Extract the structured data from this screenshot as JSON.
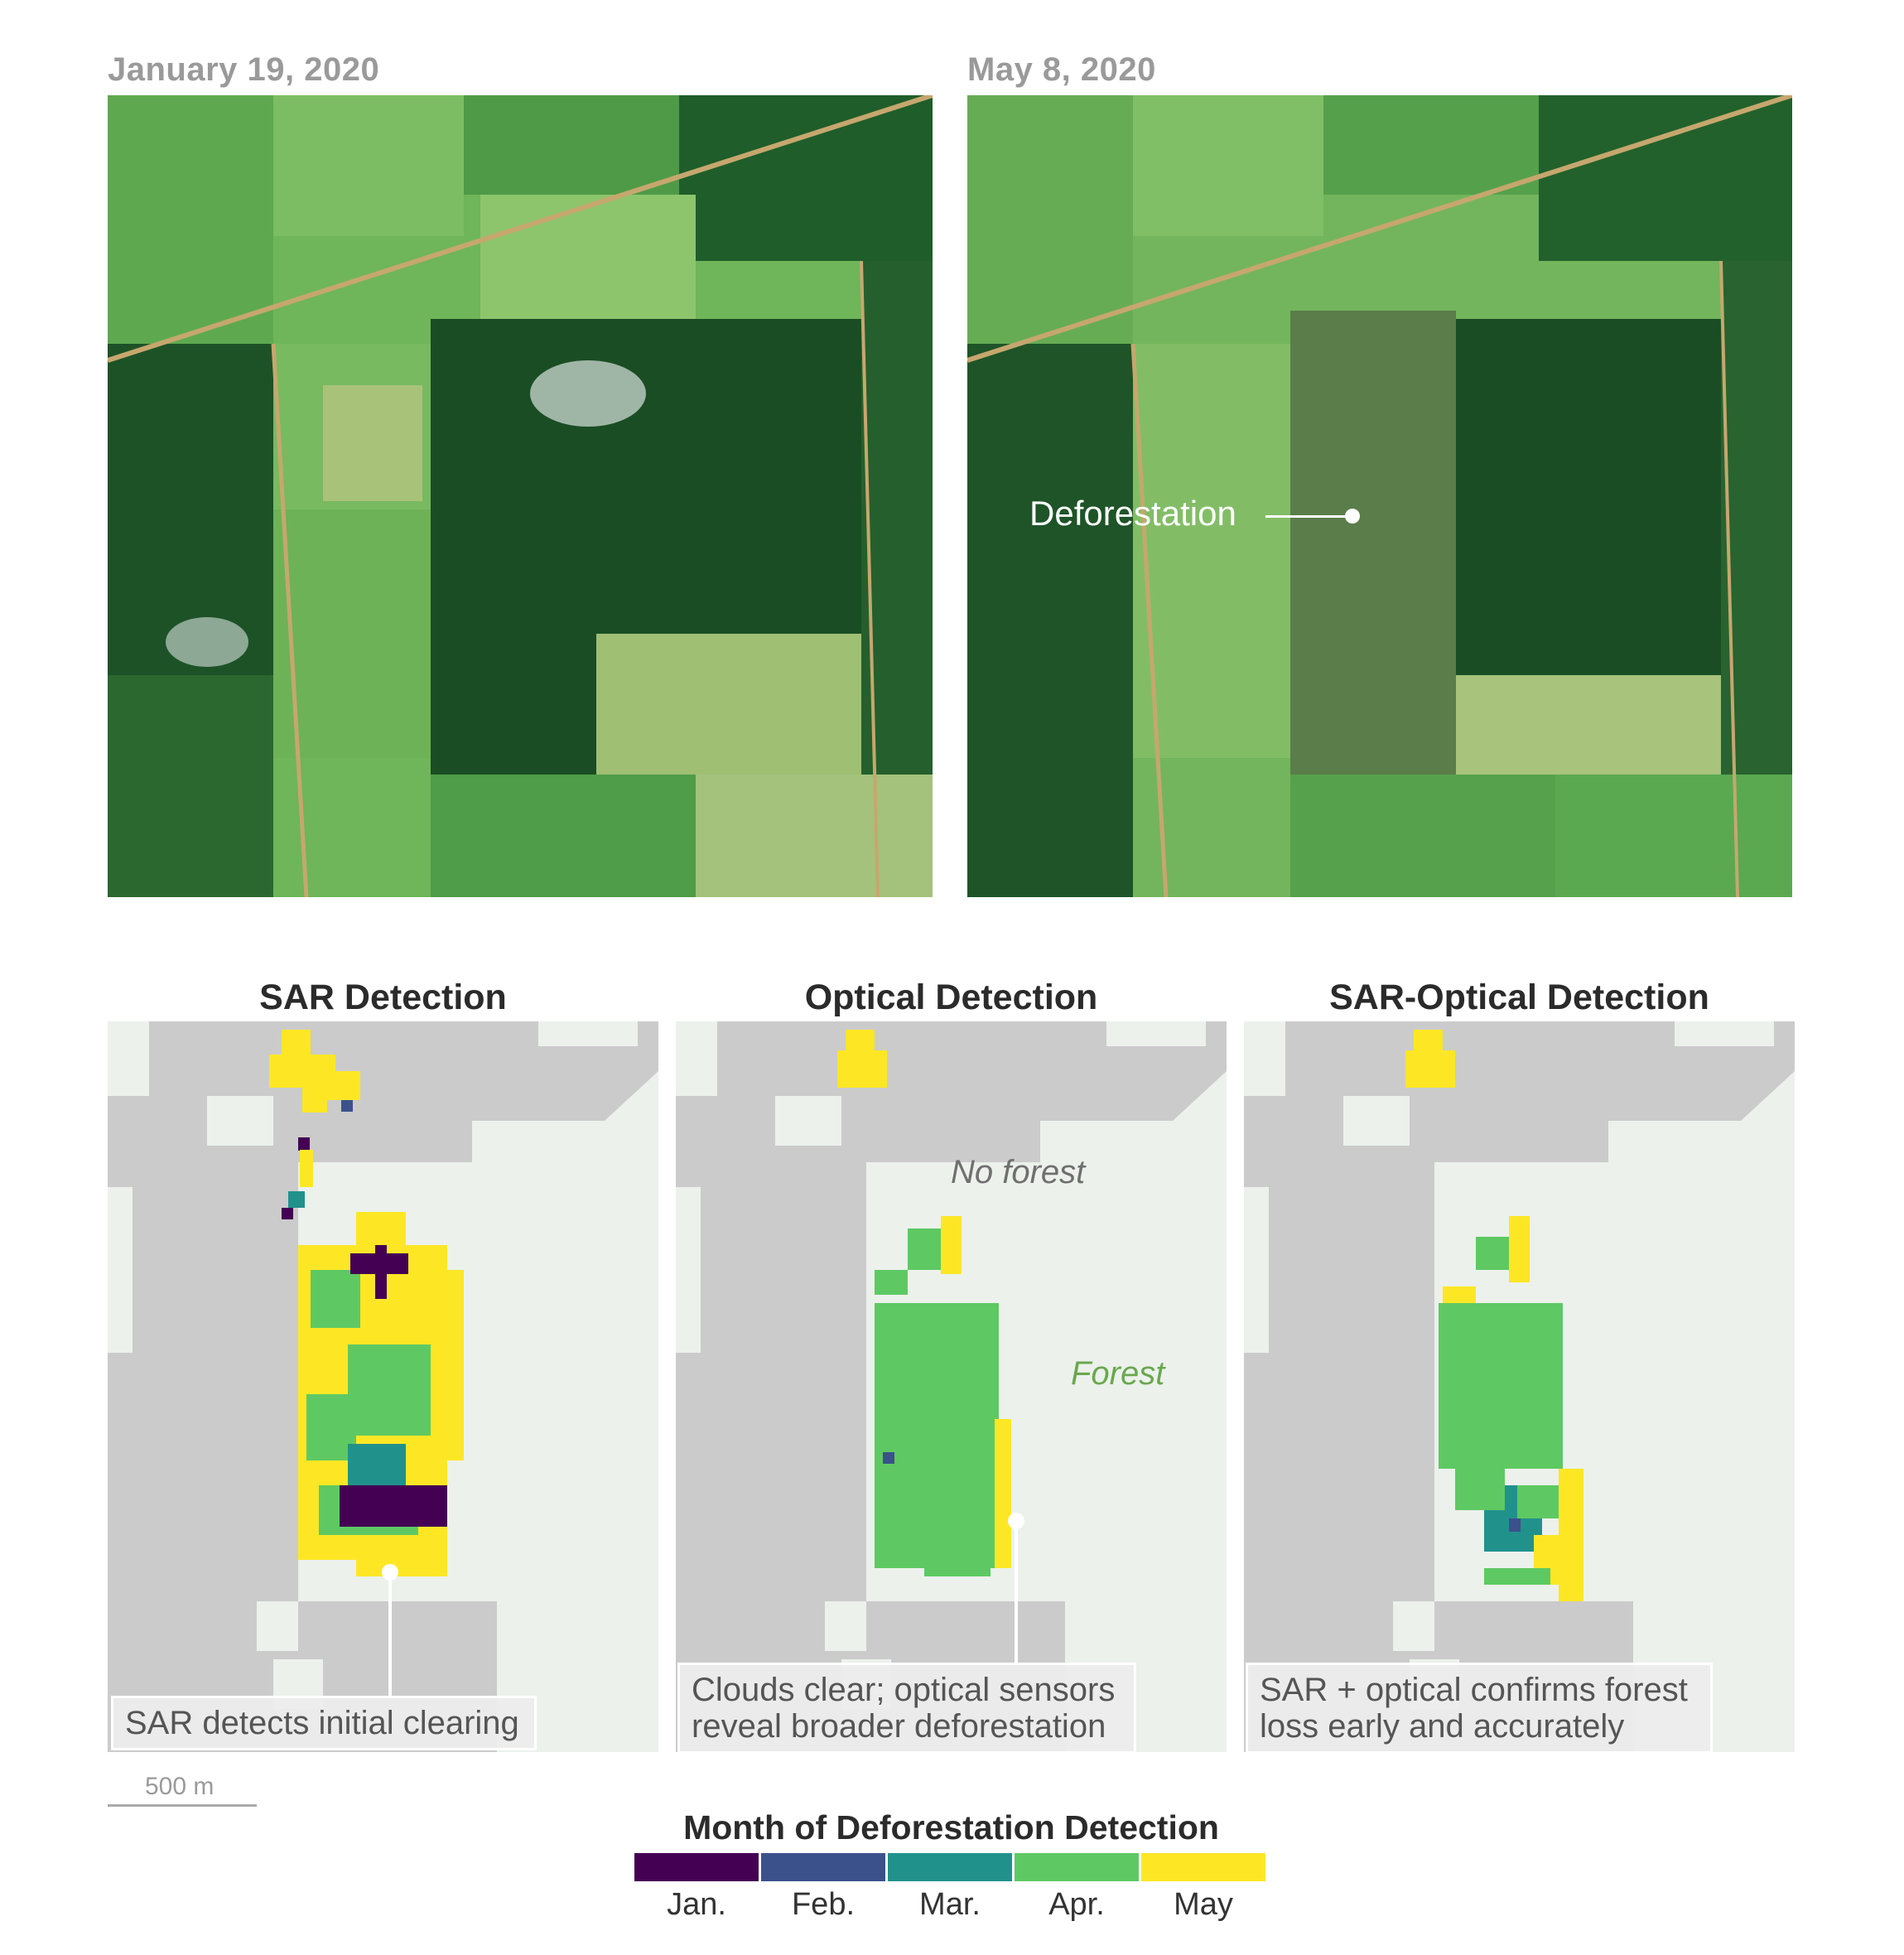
{
  "satellite": {
    "before_date": "January 19, 2020",
    "after_date": "May 8, 2020",
    "annotation": "Deforestation"
  },
  "panels": [
    {
      "title": "SAR Detection",
      "caption_lines": [
        "SAR detects initial clearing"
      ]
    },
    {
      "title": "Optical Detection",
      "caption_lines": [
        "Clouds clear; optical sensors",
        "reveal broader deforestation"
      ]
    },
    {
      "title": "SAR-Optical Detection",
      "caption_lines": [
        "SAR + optical confirms forest",
        "loss early and accurately"
      ]
    }
  ],
  "map_labels": {
    "no_forest": "No forest",
    "forest": "Forest"
  },
  "scale_bar": {
    "label": "500 m"
  },
  "legend": {
    "title": "Month of Deforestation Detection",
    "items": [
      {
        "label": "Jan.",
        "color": "#440154"
      },
      {
        "label": "Feb.",
        "color": "#3b518b"
      },
      {
        "label": "Mar.",
        "color": "#21918c"
      },
      {
        "label": "Apr.",
        "color": "#5ec962"
      },
      {
        "label": "May",
        "color": "#fde725"
      }
    ]
  },
  "colors": {
    "no_forest": "#cbcbcb",
    "forest": "#ecf1ec",
    "forest_label": "#6aa84f",
    "no_forest_label": "#6f6f6f"
  }
}
